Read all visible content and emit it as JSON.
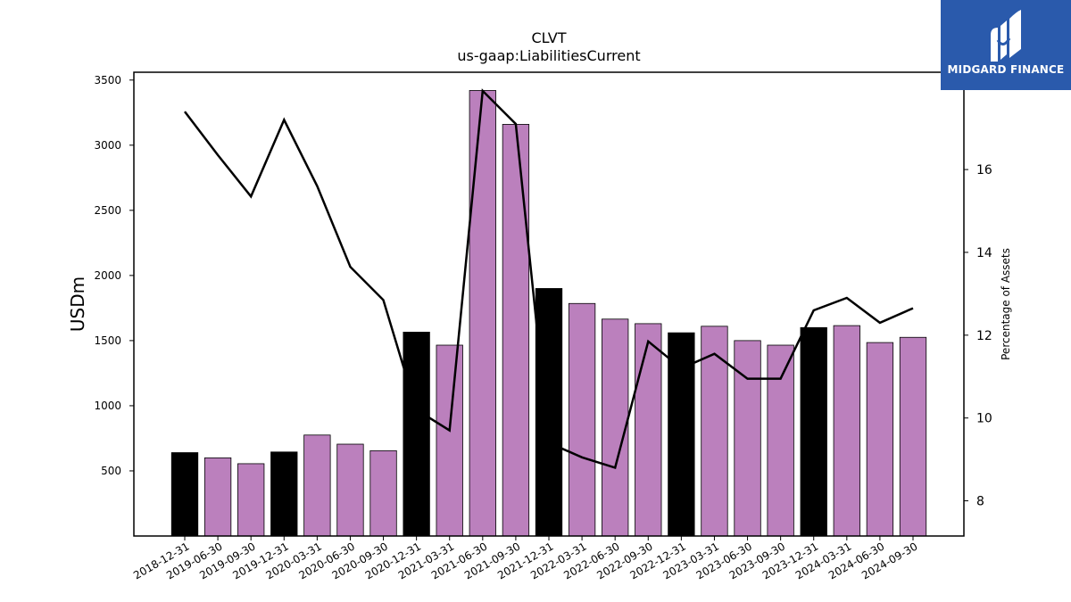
{
  "chart_data": {
    "type": "bar",
    "title": "CLVT",
    "subtitle": "us-gaap:LiabilitiesCurrent",
    "ylabel": "USDm",
    "y2label": "Percentage of Assets",
    "ylim": [
      0,
      3560
    ],
    "y2lim": [
      7.15,
      18.35
    ],
    "yticks": [
      500,
      1000,
      1500,
      2000,
      2500,
      3000,
      3500
    ],
    "y2ticks": [
      8,
      10,
      12,
      14,
      16
    ],
    "categories": [
      "2018-12-31",
      "2019-06-30",
      "2019-09-30",
      "2019-12-31",
      "2020-03-31",
      "2020-06-30",
      "2020-09-30",
      "2020-12-31",
      "2021-03-31",
      "2021-06-30",
      "2021-09-30",
      "2021-12-31",
      "2022-03-31",
      "2022-06-30",
      "2022-09-30",
      "2022-12-31",
      "2023-03-31",
      "2023-06-30",
      "2023-09-30",
      "2023-12-31",
      "2024-03-31",
      "2024-06-30",
      "2024-09-30"
    ],
    "series": [
      {
        "kind": "bar",
        "axis": "left",
        "values": [
          640,
          600,
          555,
          645,
          775,
          705,
          655,
          1565,
          1465,
          3420,
          3160,
          1900,
          1785,
          1665,
          1630,
          1560,
          1610,
          1500,
          1465,
          1600,
          1615,
          1485,
          1525
        ],
        "colors": [
          "#000000",
          "#bb80bd",
          "#bb80bd",
          "#000000",
          "#bb80bd",
          "#bb80bd",
          "#bb80bd",
          "#000000",
          "#bb80bd",
          "#bb80bd",
          "#bb80bd",
          "#000000",
          "#bb80bd",
          "#bb80bd",
          "#bb80bd",
          "#000000",
          "#bb80bd",
          "#bb80bd",
          "#bb80bd",
          "#000000",
          "#bb80bd",
          "#bb80bd",
          "#bb80bd"
        ]
      },
      {
        "kind": "line",
        "axis": "right",
        "color": "#000000",
        "values": [
          17.4,
          16.35,
          15.35,
          17.2,
          15.6,
          13.65,
          12.85,
          10.2,
          9.7,
          17.9,
          17.1,
          9.4,
          9.05,
          8.8,
          11.85,
          11.2,
          11.55,
          10.95,
          10.95,
          12.6,
          12.9,
          12.3,
          12.65
        ]
      }
    ],
    "grid": false
  },
  "logo": {
    "name": "MIDGARD FINANCE",
    "bg_color": "#2a5aac"
  }
}
